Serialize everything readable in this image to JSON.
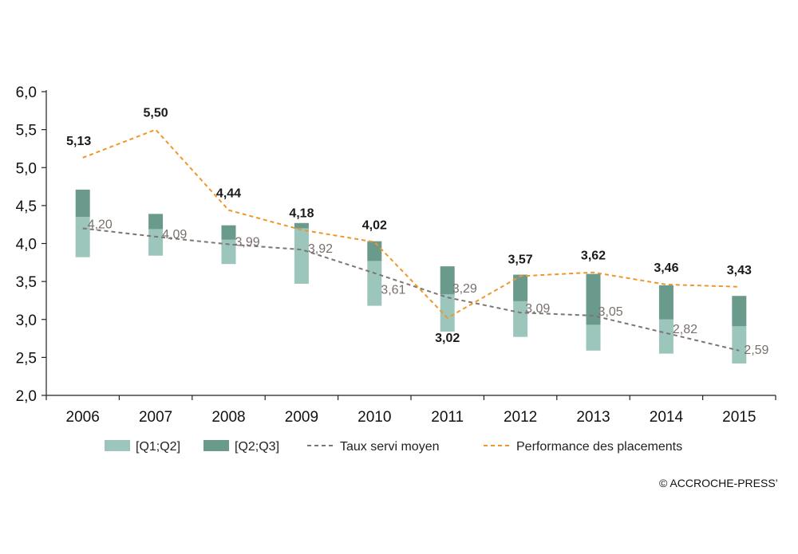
{
  "chart_data": {
    "type": "bar",
    "categories": [
      "2006",
      "2007",
      "2008",
      "2009",
      "2010",
      "2011",
      "2012",
      "2013",
      "2014",
      "2015"
    ],
    "ylim": [
      2.0,
      6.0
    ],
    "yticks": [
      "2,0",
      "2,5",
      "3,0",
      "3,5",
      "4,0",
      "4,5",
      "5,0",
      "5,5",
      "6,0"
    ],
    "grid": false,
    "legend_position": "bottom",
    "series": [
      {
        "name": "[Q1;Q2]",
        "kind": "floating-bar",
        "color": "#9cc6bb",
        "low": [
          3.82,
          3.84,
          3.73,
          3.47,
          3.18,
          2.84,
          2.77,
          2.59,
          2.55,
          2.42
        ],
        "high": [
          4.35,
          4.19,
          4.05,
          4.2,
          3.77,
          3.33,
          3.24,
          2.93,
          3.0,
          2.91
        ]
      },
      {
        "name": "[Q2;Q3]",
        "kind": "floating-bar",
        "color": "#6a9a8b",
        "low": [
          4.35,
          4.19,
          4.05,
          4.2,
          3.77,
          3.33,
          3.24,
          2.93,
          3.0,
          2.91
        ],
        "high": [
          4.71,
          4.39,
          4.24,
          4.27,
          4.03,
          3.7,
          3.59,
          3.6,
          3.45,
          3.31
        ]
      },
      {
        "name": "Taux servi moyen",
        "kind": "dashed-line",
        "color": "#7d7573",
        "values": [
          4.2,
          4.09,
          3.99,
          3.92,
          3.61,
          3.29,
          3.09,
          3.05,
          2.82,
          2.59
        ],
        "labels": [
          "4,20",
          "4,09",
          "3,99",
          "3,92",
          "3,61",
          "3,29",
          "3,09",
          "3,05",
          "2,82",
          "2,59"
        ]
      },
      {
        "name": "Performance des placements",
        "kind": "dashed-line",
        "color": "#f0962b",
        "values": [
          5.13,
          5.5,
          4.44,
          4.18,
          4.02,
          3.02,
          3.57,
          3.62,
          3.46,
          3.43
        ],
        "labels": [
          "5,13",
          "5,50",
          "4,44",
          "4,18",
          "4,02",
          "3,02",
          "3,57",
          "3,62",
          "3,46",
          "3,43"
        ]
      }
    ]
  },
  "credit": "© ACCROCHE-PRESS’"
}
